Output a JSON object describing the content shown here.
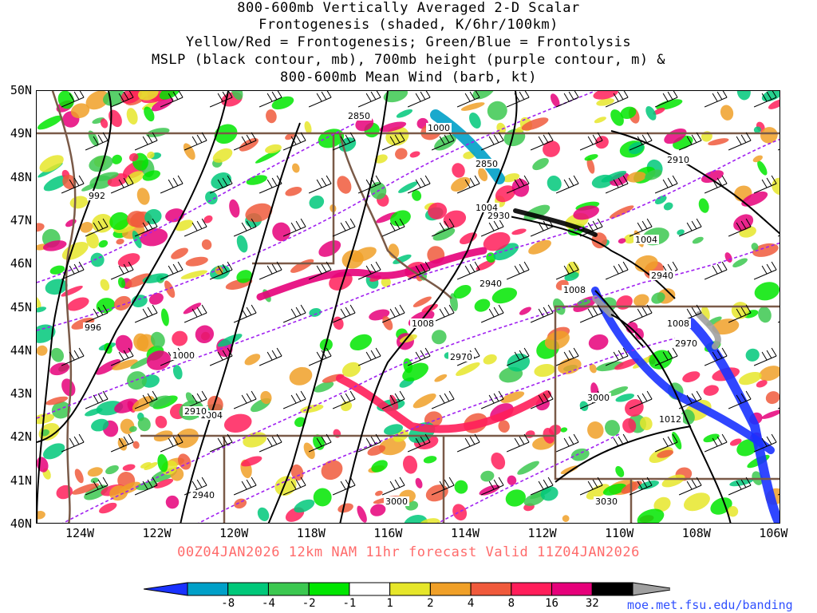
{
  "title": {
    "line1": "800-600mb Vertically Averaged 2-D Scalar",
    "line2": "Frontogenesis (shaded, K/6hr/100km)",
    "line3": "Yellow/Red = Frontogenesis;  Green/Blue = Frontolysis",
    "line4": "MSLP (black contour, mb), 700mb height (purple contour, m) &",
    "line5": "800-600mb Mean Wind (barb, kt)"
  },
  "latitudes": [
    "50N",
    "49N",
    "48N",
    "47N",
    "46N",
    "45N",
    "44N",
    "43N",
    "42N",
    "41N",
    "40N"
  ],
  "longitudes": [
    "124W",
    "122W",
    "120W",
    "118W",
    "116W",
    "114W",
    "112W",
    "110W",
    "108W",
    "106W"
  ],
  "valid_text": "00Z04JAN2026 12km NAM 11hr forecast Valid 11Z04JAN2026",
  "colorbar": {
    "labels": [
      "-8",
      "-4",
      "-2",
      "-1",
      "1",
      "2",
      "4",
      "8",
      "16",
      "32"
    ],
    "colors": [
      "#1a32ff",
      "#00a0c8",
      "#00c87a",
      "#3cc850",
      "#00e600",
      "#ffffff",
      "#e6e62a",
      "#f0a028",
      "#f05a3c",
      "#ff1e5a",
      "#e6007a",
      "#000000",
      "#a0a0a0"
    ]
  },
  "credit": "moe.met.fsu.edu/banding",
  "contours": {
    "mslp_labels": [
      "992",
      "996",
      "1000",
      "1000",
      "1004",
      "1004",
      "1004",
      "1008",
      "1008",
      "1008",
      "1012"
    ],
    "height_labels": [
      "2850",
      "2850",
      "2910",
      "2910",
      "2930",
      "2940",
      "2940",
      "2940",
      "2970",
      "2970",
      "3000",
      "3000",
      "3030"
    ]
  },
  "legend_colors": {
    "mslp": "#000000",
    "height": "#a020f0",
    "borders": "#7a5a48"
  }
}
